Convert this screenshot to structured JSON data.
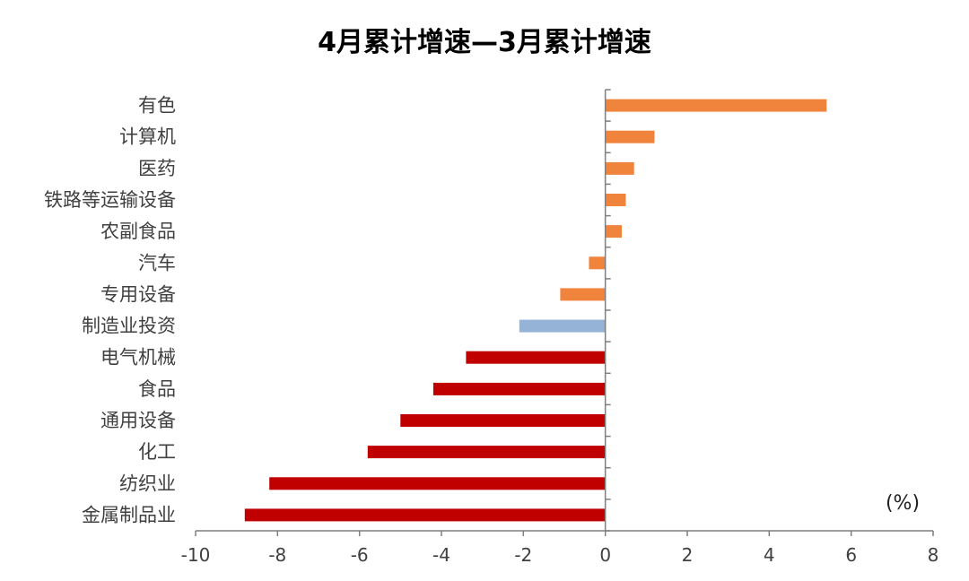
{
  "chart_data": {
    "type": "bar",
    "orientation": "horizontal",
    "title": "4月累计增速—3月累计增速",
    "unit": "(%)",
    "categories": [
      "有色",
      "计算机",
      "医药",
      "铁路等运输设备",
      "农副食品",
      "汽车",
      "专用设备",
      "制造业投资",
      "电气机械",
      "食品",
      "通用设备",
      "化工",
      "纺织业",
      "金属制品业"
    ],
    "values": [
      5.4,
      1.2,
      0.7,
      0.5,
      0.4,
      -0.4,
      -1.1,
      -2.1,
      -3.4,
      -4.2,
      -5.0,
      -5.8,
      -8.2,
      -8.8
    ],
    "colors": [
      "#F0843C",
      "#F0843C",
      "#F0843C",
      "#F0843C",
      "#F0843C",
      "#F0843C",
      "#F0843C",
      "#95B3D7",
      "#C00000",
      "#C00000",
      "#C00000",
      "#C00000",
      "#C00000",
      "#C00000"
    ],
    "xlim": [
      -10,
      8
    ],
    "xticks": [
      -10,
      -8,
      -6,
      -4,
      -2,
      0,
      2,
      4,
      6,
      8
    ],
    "xlabel": "",
    "ylabel": "",
    "grid": false,
    "legend": "none"
  }
}
